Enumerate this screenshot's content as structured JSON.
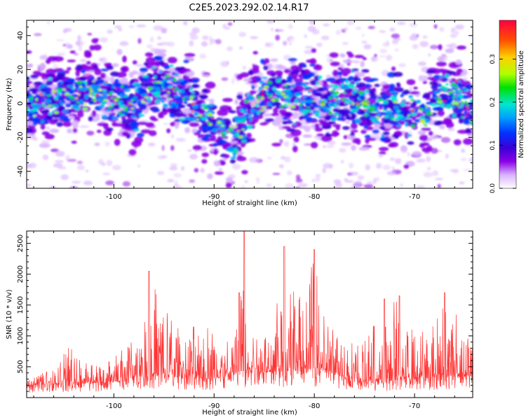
{
  "title": "C2E5.2023.292.02.14.R17",
  "chart_data": [
    {
      "type": "heatmap",
      "xlabel": "Height of straight line (km)",
      "ylabel": "Frequency (Hz)",
      "xlim": [
        -108.7,
        -64.2
      ],
      "ylim": [
        -50,
        49
      ],
      "xticks": [
        -100,
        -90,
        -80,
        -70
      ],
      "yticks": [
        -40,
        -20,
        0,
        20,
        40
      ],
      "colorbar": {
        "label": "Normalized spectral amplitude",
        "range": [
          0.0,
          0.39
        ],
        "ticks": [
          0.0,
          0.1,
          0.2,
          0.3
        ],
        "colors": [
          "#ffffff",
          "#d9b3ff",
          "#8a00e6",
          "#3b00d8",
          "#0033ff",
          "#00a0ff",
          "#00e6d0",
          "#00e000",
          "#b0ff00",
          "#ffd000",
          "#ff5000",
          "#ff0040"
        ]
      },
      "ridge_center_hz": [
        {
          "x": -108.5,
          "y": 1
        },
        {
          "x": -105,
          "y": 3
        },
        {
          "x": -103,
          "y": 7
        },
        {
          "x": -100,
          "y": 4
        },
        {
          "x": -98,
          "y": -4
        },
        {
          "x": -96.5,
          "y": 9
        },
        {
          "x": -95,
          "y": 11
        },
        {
          "x": -93,
          "y": 4
        },
        {
          "x": -91,
          "y": -5
        },
        {
          "x": -89.5,
          "y": -14
        },
        {
          "x": -88,
          "y": -22
        },
        {
          "x": -86.5,
          "y": -3
        },
        {
          "x": -85,
          "y": 7
        },
        {
          "x": -83,
          "y": 4
        },
        {
          "x": -81,
          "y": 4
        },
        {
          "x": -79,
          "y": 0
        },
        {
          "x": -77,
          "y": 4
        },
        {
          "x": -75,
          "y": -1
        },
        {
          "x": -73,
          "y": -6
        },
        {
          "x": -71,
          "y": -3
        },
        {
          "x": -69.5,
          "y": -10
        },
        {
          "x": -67.5,
          "y": 6
        },
        {
          "x": -66,
          "y": 7
        },
        {
          "x": -64.5,
          "y": -5
        }
      ]
    },
    {
      "type": "line",
      "xlabel": "Height of straight line (km)",
      "ylabel": "SNR (10 * v/v)",
      "xlim": [
        -108.7,
        -64.2
      ],
      "ylim": [
        0,
        2700
      ],
      "xticks": [
        -100,
        -90,
        -80,
        -70
      ],
      "yticks": [
        500,
        1000,
        1500,
        2000,
        2500
      ],
      "color": "#ff3333",
      "envelope": [
        {
          "x": -108.5,
          "y": 300
        },
        {
          "x": -106,
          "y": 500
        },
        {
          "x": -104.5,
          "y": 900
        },
        {
          "x": -102,
          "y": 500
        },
        {
          "x": -100,
          "y": 650
        },
        {
          "x": -98.5,
          "y": 900
        },
        {
          "x": -97,
          "y": 1050
        },
        {
          "x": -96.5,
          "y": 2050
        },
        {
          "x": -95,
          "y": 1500
        },
        {
          "x": -93,
          "y": 1000
        },
        {
          "x": -91,
          "y": 1400
        },
        {
          "x": -89,
          "y": 800
        },
        {
          "x": -87.5,
          "y": 1700
        },
        {
          "x": -87,
          "y": 2700
        },
        {
          "x": -86,
          "y": 900
        },
        {
          "x": -84,
          "y": 1300
        },
        {
          "x": -83,
          "y": 2450
        },
        {
          "x": -81,
          "y": 1500
        },
        {
          "x": -80,
          "y": 2400
        },
        {
          "x": -78.5,
          "y": 1200
        },
        {
          "x": -77,
          "y": 1000
        },
        {
          "x": -75,
          "y": 900
        },
        {
          "x": -73,
          "y": 1600
        },
        {
          "x": -71.5,
          "y": 1650
        },
        {
          "x": -70,
          "y": 1100
        },
        {
          "x": -68,
          "y": 1300
        },
        {
          "x": -67,
          "y": 1700
        },
        {
          "x": -65.5,
          "y": 1300
        },
        {
          "x": -64.3,
          "y": 900
        }
      ],
      "baseline": [
        {
          "x": -108.5,
          "y": 200
        },
        {
          "x": -100,
          "y": 250
        },
        {
          "x": -97,
          "y": 350
        },
        {
          "x": -90,
          "y": 300
        },
        {
          "x": -86,
          "y": 400
        },
        {
          "x": -80,
          "y": 450
        },
        {
          "x": -75,
          "y": 250
        },
        {
          "x": -70,
          "y": 300
        },
        {
          "x": -64.3,
          "y": 350
        }
      ]
    }
  ]
}
